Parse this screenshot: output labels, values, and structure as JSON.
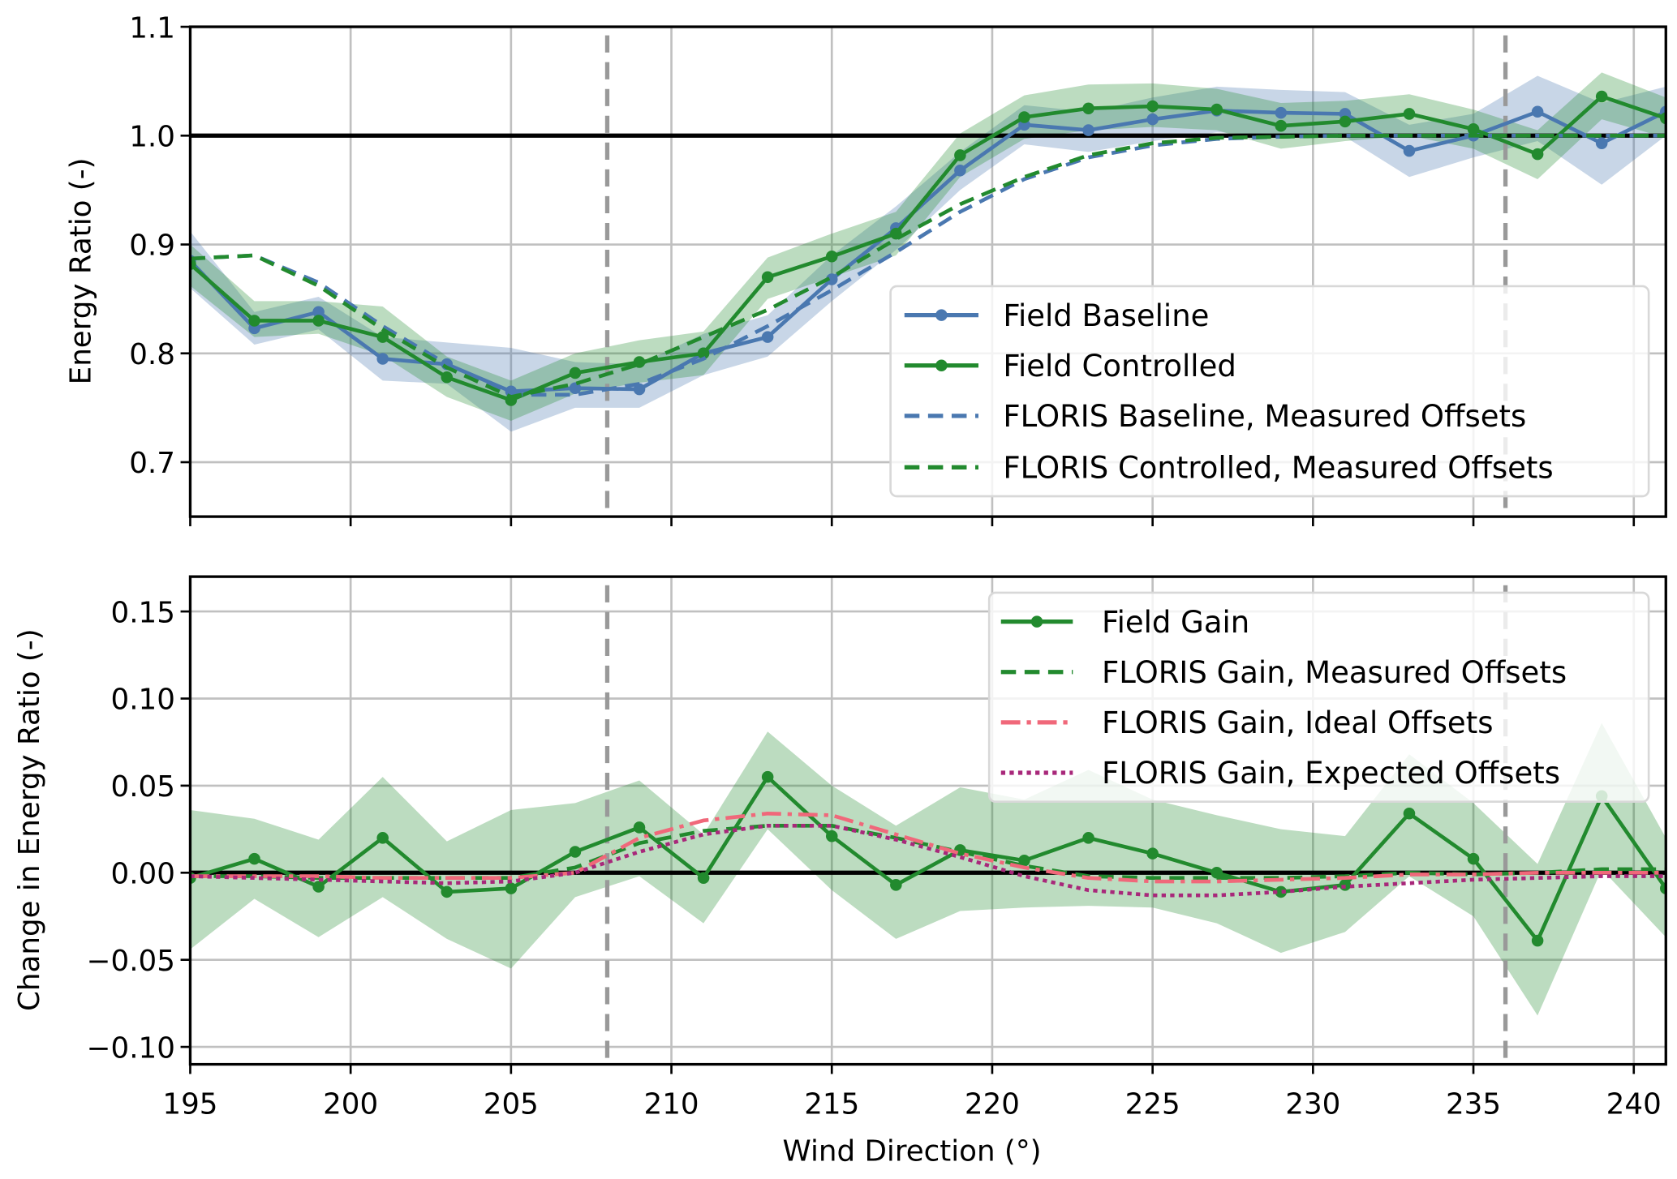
{
  "colors": {
    "baseline": "#4a78b0",
    "controlled": "#228a2e",
    "ideal": "#f0687a",
    "expected": "#a8287a",
    "vline": "#999999"
  },
  "chart_data": [
    {
      "type": "line",
      "xlabel": "",
      "ylabel": "Energy Ratio (-)",
      "xlim": [
        195,
        241
      ],
      "ylim": [
        0.65,
        1.1
      ],
      "xticks": [
        195,
        200,
        205,
        210,
        215,
        220,
        225,
        230,
        235,
        240
      ],
      "yticks": [
        "0.7",
        "0.8",
        "0.9",
        "1.0",
        "1.1"
      ],
      "grid": true,
      "legend_position": "center-right",
      "reference_hline": 1.0,
      "reference_vlines": [
        208,
        236
      ],
      "x": [
        195,
        197,
        199,
        201,
        203,
        205,
        207,
        209,
        211,
        213,
        215,
        217,
        219,
        221,
        223,
        225,
        227,
        229,
        231,
        233,
        235,
        237,
        239,
        241
      ],
      "series": [
        {
          "name": "Field Baseline",
          "style": "solid-marker",
          "color": "baseline",
          "values": [
            0.885,
            0.823,
            0.838,
            0.795,
            0.79,
            0.765,
            0.768,
            0.767,
            0.8,
            0.815,
            0.868,
            0.915,
            0.968,
            1.01,
            1.005,
            1.015,
            1.023,
            1.021,
            1.02,
            0.986,
            1.0,
            1.022,
            0.993,
            1.022
          ],
          "band_lower": [
            0.86,
            0.808,
            0.822,
            0.775,
            0.772,
            0.728,
            0.75,
            0.75,
            0.78,
            0.797,
            0.848,
            0.895,
            0.95,
            0.992,
            0.985,
            0.995,
            1.003,
            1.0,
            0.999,
            0.962,
            0.98,
            0.995,
            0.955,
            1.0
          ],
          "band_upper": [
            0.912,
            0.838,
            0.852,
            0.815,
            0.81,
            0.805,
            0.792,
            0.79,
            0.818,
            0.835,
            0.89,
            0.935,
            0.985,
            1.028,
            1.022,
            1.035,
            1.045,
            1.042,
            1.04,
            1.01,
            1.02,
            1.055,
            1.03,
            1.045
          ]
        },
        {
          "name": "Field Controlled",
          "style": "solid-marker",
          "color": "controlled",
          "values": [
            0.882,
            0.83,
            0.83,
            0.815,
            0.778,
            0.757,
            0.782,
            0.792,
            0.8,
            0.87,
            0.889,
            0.91,
            0.982,
            1.017,
            1.025,
            1.027,
            1.024,
            1.009,
            1.013,
            1.02,
            1.006,
            0.983,
            1.036,
            1.016
          ],
          "band_lower": [
            0.862,
            0.815,
            0.818,
            0.798,
            0.76,
            0.738,
            0.763,
            0.773,
            0.78,
            0.85,
            0.87,
            0.89,
            0.962,
            0.997,
            1.005,
            1.008,
            1.005,
            0.988,
            0.995,
            1.0,
            0.988,
            0.96,
            1.015,
            0.998
          ],
          "band_upper": [
            0.9,
            0.848,
            0.848,
            0.843,
            0.797,
            0.775,
            0.8,
            0.812,
            0.82,
            0.888,
            0.91,
            0.93,
            1.002,
            1.037,
            1.047,
            1.048,
            1.043,
            1.03,
            1.032,
            1.038,
            1.024,
            1.005,
            1.058,
            1.035
          ]
        },
        {
          "name": "FLORIS Baseline, Measured Offsets",
          "style": "dashed",
          "color": "baseline",
          "values": [
            0.887,
            0.89,
            0.865,
            0.825,
            0.79,
            0.762,
            0.762,
            0.772,
            0.795,
            0.825,
            0.858,
            0.893,
            0.93,
            0.96,
            0.98,
            0.991,
            0.997,
            0.999,
            1.0,
            1.0,
            1.0,
            1.0,
            1.0,
            1.0
          ]
        },
        {
          "name": "FLORIS Controlled, Measured Offsets",
          "style": "dashed",
          "color": "controlled",
          "values": [
            0.887,
            0.89,
            0.862,
            0.822,
            0.787,
            0.76,
            0.772,
            0.79,
            0.815,
            0.84,
            0.87,
            0.905,
            0.937,
            0.962,
            0.982,
            0.993,
            0.998,
            0.999,
            1.0,
            1.0,
            1.0,
            1.0,
            1.0,
            1.0
          ]
        }
      ]
    },
    {
      "type": "line",
      "xlabel": "Wind Direction (°)",
      "ylabel": "Change in Energy Ratio (-)",
      "xlim": [
        195,
        241
      ],
      "ylim": [
        -0.11,
        0.17
      ],
      "xticks": [
        195,
        200,
        205,
        210,
        215,
        220,
        225,
        230,
        235,
        240
      ],
      "yticks": [
        "−0.10",
        "−0.05",
        "0.00",
        "0.05",
        "0.10",
        "0.15"
      ],
      "grid": true,
      "legend_position": "top-right",
      "reference_hline": 0.0,
      "reference_vlines": [
        208,
        236
      ],
      "x": [
        195,
        197,
        199,
        201,
        203,
        205,
        207,
        209,
        211,
        213,
        215,
        217,
        219,
        221,
        223,
        225,
        227,
        229,
        231,
        233,
        235,
        237,
        239,
        241
      ],
      "series": [
        {
          "name": "Field Gain",
          "style": "solid-marker",
          "color": "controlled",
          "values": [
            -0.003,
            0.008,
            -0.008,
            0.02,
            -0.011,
            -0.009,
            0.012,
            0.026,
            -0.003,
            0.055,
            0.021,
            -0.007,
            0.013,
            0.007,
            0.02,
            0.011,
            0.0,
            -0.011,
            -0.007,
            0.034,
            0.008,
            -0.039,
            0.044,
            -0.009
          ],
          "band_lower": [
            -0.044,
            -0.015,
            -0.037,
            -0.014,
            -0.038,
            -0.055,
            -0.014,
            -0.002,
            -0.029,
            0.025,
            -0.01,
            -0.038,
            -0.022,
            -0.02,
            -0.019,
            -0.02,
            -0.029,
            -0.046,
            -0.034,
            -0.002,
            -0.025,
            -0.082,
            0.002,
            -0.037
          ],
          "band_upper": [
            0.036,
            0.031,
            0.019,
            0.055,
            0.018,
            0.036,
            0.04,
            0.053,
            0.022,
            0.081,
            0.05,
            0.027,
            0.049,
            0.042,
            0.059,
            0.042,
            0.033,
            0.025,
            0.021,
            0.068,
            0.04,
            0.005,
            0.086,
            0.02
          ]
        },
        {
          "name": "FLORIS Gain, Measured Offsets",
          "style": "dashed",
          "color": "controlled",
          "values": [
            -0.002,
            -0.002,
            -0.003,
            -0.003,
            -0.003,
            -0.003,
            0.003,
            0.017,
            0.024,
            0.027,
            0.027,
            0.02,
            0.012,
            0.004,
            -0.002,
            -0.003,
            -0.003,
            -0.003,
            -0.002,
            0.0,
            -0.001,
            0.0,
            0.002,
            0.002
          ]
        },
        {
          "name": "FLORIS Gain, Ideal Offsets",
          "style": "dashdot",
          "color": "ideal",
          "values": [
            -0.002,
            -0.002,
            -0.002,
            -0.003,
            -0.003,
            -0.003,
            0.0,
            0.02,
            0.03,
            0.034,
            0.033,
            0.022,
            0.011,
            0.003,
            -0.003,
            -0.005,
            -0.005,
            -0.004,
            -0.003,
            -0.001,
            -0.001,
            0.0,
            0.0,
            0.0
          ]
        },
        {
          "name": "FLORIS Gain, Expected Offsets",
          "style": "dotted",
          "color": "expected",
          "values": [
            -0.002,
            -0.003,
            -0.004,
            -0.005,
            -0.006,
            -0.005,
            0.0,
            0.012,
            0.022,
            0.027,
            0.027,
            0.019,
            0.009,
            -0.002,
            -0.01,
            -0.013,
            -0.013,
            -0.011,
            -0.008,
            -0.006,
            -0.004,
            -0.003,
            -0.002,
            -0.002
          ]
        }
      ]
    }
  ]
}
